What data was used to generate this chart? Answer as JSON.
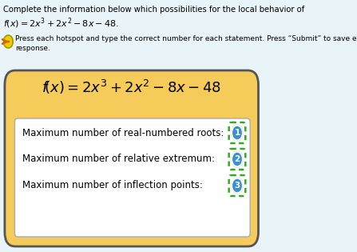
{
  "bg_color": "#e8f4f8",
  "top_text_line1": "Complete the information below which possibilities for the local behavior of",
  "top_text_line2": "f(x) = 2x³+2x²−8x−48.",
  "instruction_text": "Press each hotspot and type the correct number for each statement. Press “Submit” to save each\nresponse.",
  "yellow_box_color": "#f5cc5a",
  "yellow_box_edge": "#555555",
  "inner_box_color": "#ffffff",
  "inner_box_edge": "#aaaaaa",
  "row1_label": "Maximum number of real-numbered roots:",
  "row2_label": "Maximum number of relative extremum:",
  "row3_label": "Maximum number of inflection points:",
  "hotspot_values": [
    "1",
    "2",
    "3"
  ],
  "hotspot_circle_color": "#3a8fd4",
  "hotspot_bg_color": "#f0ead8",
  "hotspot_text_color": "#ffffff",
  "dashed_box_color": "#33aa22",
  "arrow_circle_color": "#f5cc00",
  "arrow_circle_edge": "#999900",
  "arrow_color": "#cc6600"
}
